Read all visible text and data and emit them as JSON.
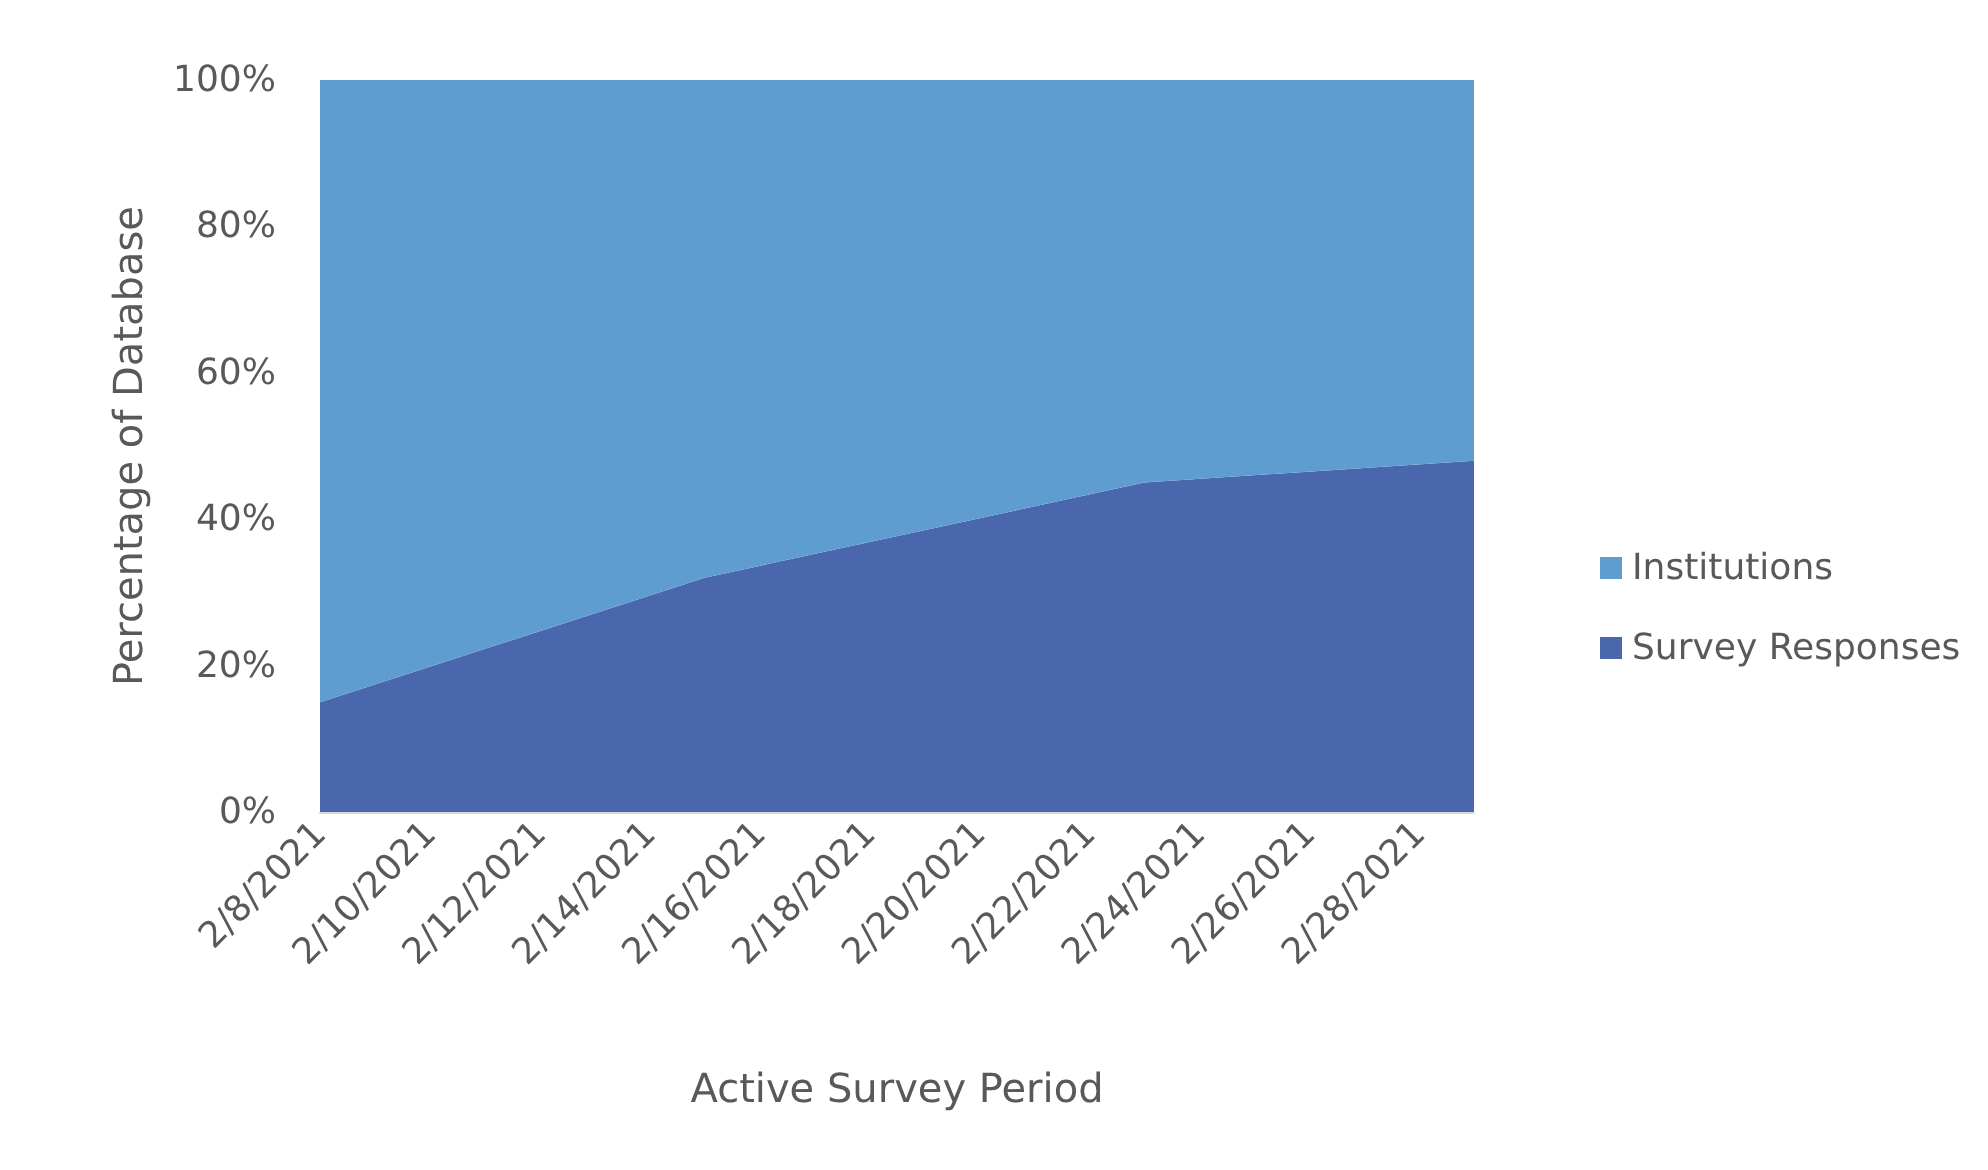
{
  "chart_data": {
    "type": "area",
    "xlabel": "Active Survey Period",
    "ylabel": "Percentage of Database",
    "x": [
      "2021-02-08",
      "2021-02-15",
      "2021-02-23",
      "2021-03-01"
    ],
    "series": [
      {
        "name": "Survey Responses",
        "color": "#4a66ac",
        "values": [
          15,
          32,
          45,
          48
        ]
      },
      {
        "name": "Institutions",
        "color": "#5f9dd1",
        "values": [
          85,
          68,
          55,
          52
        ]
      }
    ],
    "stacked": true,
    "xlim": [
      "2021-02-08",
      "2021-03-01"
    ],
    "xticks": [
      {
        "value": "2021-02-08",
        "label": "2/8/2021"
      },
      {
        "value": "2021-02-10",
        "label": "2/10/2021"
      },
      {
        "value": "2021-02-12",
        "label": "2/12/2021"
      },
      {
        "value": "2021-02-14",
        "label": "2/14/2021"
      },
      {
        "value": "2021-02-16",
        "label": "2/16/2021"
      },
      {
        "value": "2021-02-18",
        "label": "2/18/2021"
      },
      {
        "value": "2021-02-20",
        "label": "2/20/2021"
      },
      {
        "value": "2021-02-22",
        "label": "2/22/2021"
      },
      {
        "value": "2021-02-24",
        "label": "2/24/2021"
      },
      {
        "value": "2021-02-26",
        "label": "2/26/2021"
      },
      {
        "value": "2021-02-28",
        "label": "2/28/2021"
      }
    ],
    "ylim": [
      0,
      100
    ],
    "yticks": [
      {
        "value": 0,
        "label": "0%"
      },
      {
        "value": 20,
        "label": "20%"
      },
      {
        "value": 40,
        "label": "40%"
      },
      {
        "value": 60,
        "label": "60%"
      },
      {
        "value": 80,
        "label": "80%"
      },
      {
        "value": 100,
        "label": "100%"
      }
    ],
    "grid": false,
    "legend": "right"
  }
}
